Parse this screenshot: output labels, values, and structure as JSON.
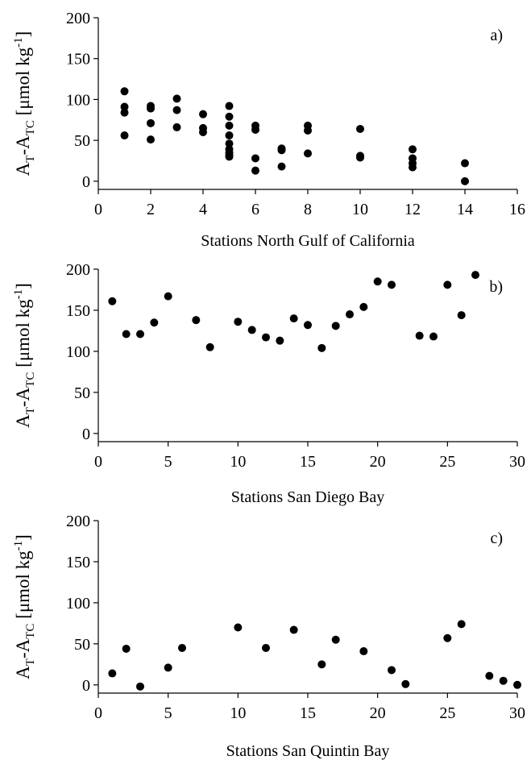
{
  "chart_data": [
    {
      "type": "scatter",
      "panel_label": "a)",
      "xlabel": "Stations North Gulf of California",
      "ylabel": {
        "base1": "A",
        "sub1": "T",
        "dash": "-A",
        "sub2": "TC",
        "unit_open": " [μmol kg",
        "sup": "-1",
        "unit_close": "]"
      },
      "xlim": [
        0,
        16
      ],
      "ylim": [
        -10,
        200
      ],
      "xticks": [
        0,
        2,
        4,
        6,
        8,
        10,
        12,
        14,
        16
      ],
      "yticks": [
        0,
        50,
        100,
        150,
        200
      ],
      "series": [
        {
          "x": [
            1,
            1,
            1,
            1,
            2,
            2,
            2,
            2,
            3,
            3,
            3,
            4,
            4,
            4,
            5,
            5,
            5,
            5,
            5,
            5,
            5,
            5,
            5,
            6,
            6,
            6,
            6,
            7,
            7,
            7,
            8,
            8,
            8,
            10,
            10,
            10,
            12,
            12,
            12,
            12,
            14,
            14
          ],
          "y": [
            110,
            91,
            84,
            56,
            92,
            89,
            71,
            51,
            101,
            87,
            66,
            82,
            65,
            60,
            92,
            79,
            68,
            56,
            46,
            39,
            35,
            32,
            30,
            68,
            63,
            28,
            13,
            40,
            38,
            18,
            68,
            62,
            34,
            64,
            31,
            29,
            39,
            28,
            22,
            17,
            22,
            0
          ]
        }
      ]
    },
    {
      "type": "scatter",
      "panel_label": "b)",
      "xlabel": "Stations San Diego Bay",
      "ylabel": {
        "base1": "A",
        "sub1": "T",
        "dash": "-A",
        "sub2": "TC",
        "unit_open": " [μmol kg",
        "sup": "-1",
        "unit_close": "]"
      },
      "xlim": [
        0,
        30
      ],
      "ylim": [
        -10,
        200
      ],
      "xticks": [
        0,
        5,
        10,
        15,
        20,
        25,
        30
      ],
      "yticks": [
        0,
        50,
        100,
        150,
        200
      ],
      "series": [
        {
          "x": [
            1,
            2,
            3,
            4,
            5,
            7,
            8,
            10,
            11,
            12,
            13,
            14,
            15,
            16,
            17,
            18,
            19,
            20,
            21,
            23,
            24,
            25,
            26,
            27
          ],
          "y": [
            161,
            121,
            121,
            135,
            167,
            138,
            105,
            136,
            126,
            117,
            113,
            140,
            132,
            104,
            131,
            145,
            154,
            185,
            181,
            119,
            118,
            181,
            144,
            193
          ]
        }
      ]
    },
    {
      "type": "scatter",
      "panel_label": "c)",
      "xlabel": "Stations San Quintin Bay",
      "ylabel": {
        "base1": "A",
        "sub1": "T",
        "dash": "-A",
        "sub2": "TC",
        "unit_open": " [μmol kg",
        "sup": "-1",
        "unit_close": "]"
      },
      "xlim": [
        0,
        30
      ],
      "ylim": [
        -10,
        200
      ],
      "xticks": [
        0,
        5,
        10,
        15,
        20,
        25,
        30
      ],
      "yticks": [
        0,
        50,
        100,
        150,
        200
      ],
      "series": [
        {
          "x": [
            1,
            2,
            3,
            5,
            6,
            10,
            12,
            14,
            16,
            17,
            19,
            21,
            22,
            25,
            26,
            28,
            29,
            30
          ],
          "y": [
            14,
            44,
            -2,
            21,
            45,
            70,
            45,
            67,
            25,
            55,
            41,
            18,
            1,
            57,
            74,
            11,
            5,
            0
          ]
        }
      ]
    }
  ]
}
